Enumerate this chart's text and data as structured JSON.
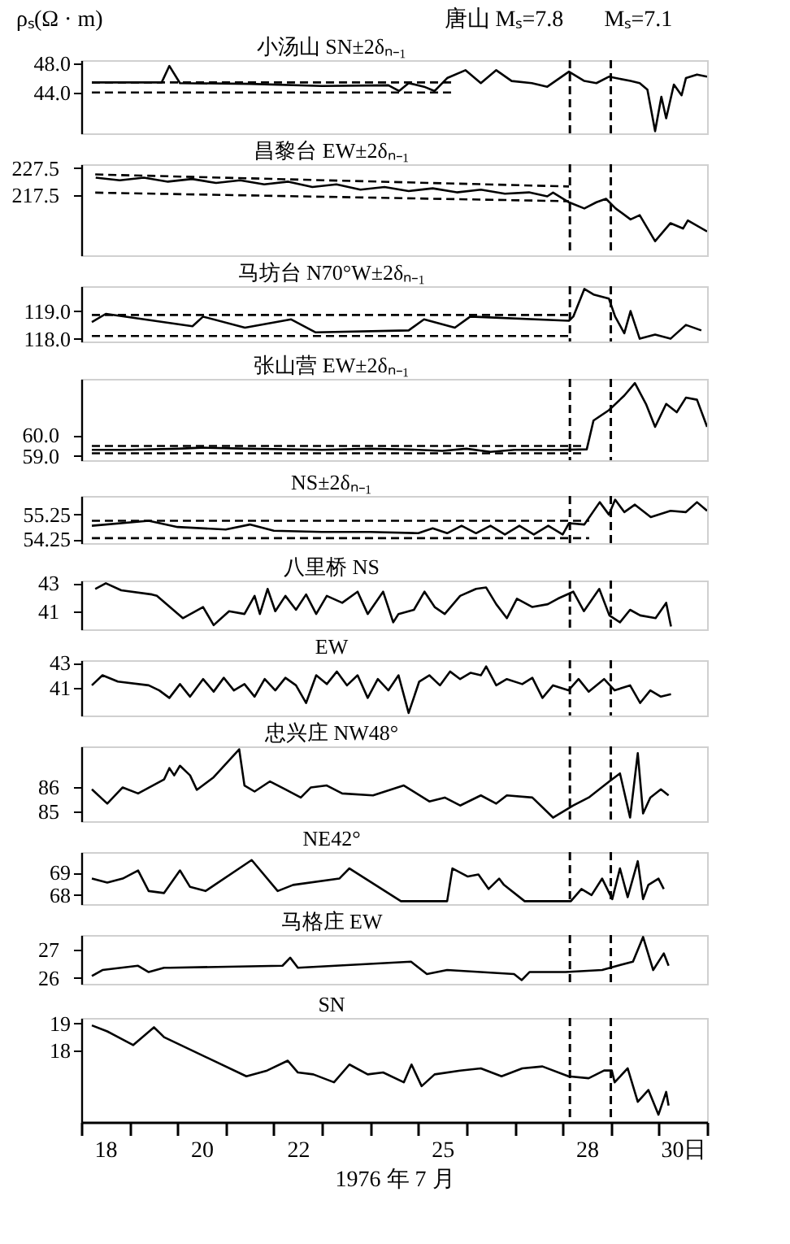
{
  "chart_data": [
    {
      "type": "line",
      "ylabel": "ρₛ(Ω · m)",
      "xlim": [
        18,
        31
      ],
      "ylim": [
        38.3,
        48.5
      ],
      "yticks": [
        {
          "value": 48,
          "label": "48.0"
        },
        {
          "value": 44,
          "label": "44.0"
        }
      ],
      "tick_labels": "y",
      "grid": false,
      "annotations": [
        "唐山 Mₛ=7.8",
        "Mₛ=7.1"
      ],
      "ref_lines": [
        {
          "axis": "x",
          "value": 28.15,
          "line_style": "dashed"
        },
        {
          "axis": "x",
          "value": 29.0,
          "line_style": "dashed"
        }
      ],
      "series": [
        {
          "name": "小汤山 SN±2δₙ₋₁",
          "color": "#000000",
          "x": [
            18.22,
            19.67,
            19.83,
            20.05,
            21.5,
            23,
            24.38,
            24.6,
            24.8,
            25.12,
            25.34,
            25.6,
            25.98,
            26.3,
            26.62,
            26.94,
            27.36,
            27.68,
            28.13,
            28.45,
            28.7,
            28.96,
            29.41,
            29.6,
            29.76,
            29.92,
            30.05,
            30.15,
            30.31,
            30.47,
            30.56,
            30.79,
            31.0
          ],
          "values": [
            45.4,
            45.4,
            47.7,
            45.3,
            45.2,
            44.9,
            45.0,
            44.2,
            45.3,
            44.8,
            44.2,
            46.0,
            47.1,
            45.3,
            47.1,
            45.6,
            45.3,
            44.8,
            46.9,
            45.6,
            45.3,
            46.2,
            45.6,
            45.3,
            44.4,
            38.6,
            43.4,
            40.4,
            45.1,
            43.6,
            46.0,
            46.5,
            46.2
          ]
        },
        {
          "type": "line",
          "line_style": "dashed",
          "color": "#000000",
          "x": [
            18.22,
            25.75
          ],
          "values": [
            45.4,
            45.4
          ]
        },
        {
          "type": "line",
          "line_style": "dashed",
          "color": "#000000",
          "x": [
            18.22,
            25.75
          ],
          "values": [
            44.0,
            44.0
          ]
        }
      ]
    },
    {
      "type": "line",
      "xlim": [
        18,
        31
      ],
      "ylim": [
        195,
        229
      ],
      "yticks": [
        {
          "value": 227.5,
          "label": "227.5"
        },
        {
          "value": 217.5,
          "label": "217.5"
        }
      ],
      "tick_labels": "y",
      "grid": false,
      "ref_lines": [
        {
          "axis": "x",
          "value": 28.15,
          "line_style": "dashed"
        },
        {
          "axis": "x",
          "value": 29.0,
          "line_style": "dashed"
        }
      ],
      "series": [
        {
          "name": "昌黎台 EW±2δₙ₋₁",
          "color": "#000000",
          "x": [
            18.3,
            18.8,
            19.3,
            19.8,
            20.3,
            20.8,
            21.3,
            21.8,
            22.3,
            22.8,
            23.3,
            23.8,
            24.3,
            24.8,
            25.3,
            25.8,
            26.3,
            26.8,
            27.3,
            27.68,
            27.8,
            28.13,
            28.45,
            28.7,
            28.9,
            29.1,
            29.41,
            29.6,
            29.92,
            30.24,
            30.5,
            30.6,
            31.0
          ],
          "values": [
            224,
            223,
            224,
            222.5,
            223.5,
            222,
            223,
            221.5,
            222.5,
            220.5,
            221.5,
            219.5,
            220.5,
            219,
            220,
            218.5,
            219.5,
            218,
            218.5,
            217,
            218.4,
            214.8,
            212.5,
            214.8,
            216.1,
            212.5,
            208.4,
            210,
            200.3,
            207,
            205,
            208,
            203.9
          ]
        },
        {
          "type": "line",
          "line_style": "dashed",
          "color": "#000000",
          "x": [
            18.29,
            28.13
          ],
          "values": [
            225.2,
            220.7
          ]
        },
        {
          "type": "line",
          "line_style": "dashed",
          "color": "#000000",
          "x": [
            18.29,
            28.13
          ],
          "values": [
            218.4,
            215.2
          ]
        }
      ]
    },
    {
      "type": "line",
      "xlim": [
        18,
        31
      ],
      "ylim": [
        117.9,
        119.9
      ],
      "yticks": [
        {
          "value": 119,
          "label": "119.0"
        },
        {
          "value": 118,
          "label": "118.0"
        }
      ],
      "tick_labels": "y",
      "grid": false,
      "ref_lines": [
        {
          "axis": "x",
          "value": 28.15,
          "line_style": "dashed"
        },
        {
          "axis": "x",
          "value": 29.0,
          "line_style": "dashed"
        }
      ],
      "series": [
        {
          "name": "马坊台 N70°W±2δₙ₋₁",
          "color": "#000000",
          "x": [
            18.22,
            18.51,
            20.31,
            20.53,
            21.4,
            22.36,
            22.87,
            24.8,
            25.12,
            25.76,
            26.08,
            28.13,
            28.22,
            28.45,
            28.64,
            28.96,
            29.09,
            29.28,
            29.41,
            29.6,
            29.92,
            30.24,
            30.56,
            30.88
          ],
          "values": [
            118.6,
            118.9,
            118.45,
            118.8,
            118.4,
            118.7,
            118.23,
            118.3,
            118.7,
            118.4,
            118.8,
            118.65,
            118.8,
            119.8,
            119.6,
            119.45,
            118.8,
            118.2,
            119.0,
            118.0,
            118.15,
            118.0,
            118.5,
            118.3
          ]
        },
        {
          "type": "line",
          "line_style": "dashed",
          "color": "#000000",
          "x": [
            18.22,
            28.13
          ],
          "values": [
            118.86,
            118.86
          ]
        },
        {
          "type": "line",
          "line_style": "dashed",
          "color": "#000000",
          "x": [
            18.22,
            28.13
          ],
          "values": [
            118.1,
            118.1
          ]
        }
      ]
    },
    {
      "type": "line",
      "xlim": [
        18,
        31
      ],
      "ylim": [
        58.8,
        62.7
      ],
      "yticks": [
        {
          "value": 60,
          "label": "60.0"
        },
        {
          "value": 59,
          "label": "59.0"
        }
      ],
      "tick_labels": "y",
      "grid": false,
      "ref_lines": [
        {
          "axis": "x",
          "value": 28.15,
          "line_style": "dashed"
        },
        {
          "axis": "x",
          "value": 29.0,
          "line_style": "dashed"
        }
      ],
      "series": [
        {
          "name": "张山营 EW±2δₙ₋₁",
          "color": "#000000",
          "x": [
            18.22,
            19,
            20,
            20.5,
            21.5,
            23,
            24,
            25,
            25.5,
            26,
            26.5,
            27,
            27.5,
            28,
            28.5,
            28.64,
            28.96,
            29.28,
            29.5,
            29.73,
            29.92,
            30.15,
            30.37,
            30.56,
            30.79,
            31.0
          ],
          "values": [
            59.3,
            59.3,
            59.35,
            59.4,
            59.35,
            59.3,
            59.35,
            59.3,
            59.25,
            59.35,
            59.2,
            59.3,
            59.3,
            59.3,
            59.32,
            60.7,
            61.2,
            61.9,
            62.5,
            61.5,
            60.4,
            61.5,
            61.1,
            61.8,
            61.7,
            60.4
          ]
        },
        {
          "type": "line",
          "line_style": "dashed",
          "color": "#000000",
          "x": [
            18.22,
            28.48
          ],
          "values": [
            59.48,
            59.48
          ]
        },
        {
          "type": "line",
          "line_style": "dashed",
          "color": "#000000",
          "x": [
            18.22,
            28.48
          ],
          "values": [
            59.13,
            59.13
          ]
        }
      ]
    },
    {
      "type": "line",
      "xlim": [
        18,
        31
      ],
      "ylim": [
        54.1,
        56.0
      ],
      "yticks": [
        {
          "value": 55.25,
          "label": "55.25"
        },
        {
          "value": 54.25,
          "label": "54.25"
        }
      ],
      "tick_labels": "y",
      "grid": false,
      "ref_lines": [
        {
          "axis": "x",
          "value": 28.15,
          "line_style": "dashed"
        },
        {
          "axis": "x",
          "value": 29.0,
          "line_style": "dashed"
        }
      ],
      "series": [
        {
          "name": "NS±2δₙ₋₁",
          "color": "#000000",
          "x": [
            18.22,
            19.4,
            20,
            21,
            21.5,
            22,
            23,
            24,
            25,
            25.3,
            25.6,
            25.9,
            26.2,
            26.5,
            26.8,
            27.1,
            27.4,
            27.7,
            28.0,
            28.13,
            28.45,
            28.77,
            28.96,
            29.09,
            29.28,
            29.5,
            29.83,
            30.24,
            30.56,
            30.79,
            31.0
          ],
          "values": [
            54.8,
            55.0,
            54.75,
            54.65,
            54.85,
            54.6,
            54.55,
            54.55,
            54.5,
            54.7,
            54.5,
            54.8,
            54.5,
            54.8,
            54.45,
            54.8,
            54.45,
            54.8,
            54.45,
            54.9,
            54.85,
            55.75,
            55.25,
            55.85,
            55.35,
            55.65,
            55.15,
            55.4,
            55.35,
            55.75,
            55.4
          ]
        },
        {
          "type": "line",
          "line_style": "dashed",
          "color": "#000000",
          "x": [
            18.22,
            28.55
          ],
          "values": [
            55.0,
            55.0
          ]
        },
        {
          "type": "line",
          "line_style": "dashed",
          "color": "#000000",
          "x": [
            18.22,
            28.55
          ],
          "values": [
            54.3,
            54.3
          ]
        }
      ]
    },
    {
      "type": "line",
      "xlim": [
        18,
        31
      ],
      "ylim": [
        39.7,
        43.2
      ],
      "yticks": [
        43,
        41
      ],
      "tick_labels": "y",
      "grid": false,
      "ref_lines": [
        {
          "axis": "x",
          "value": 28.15,
          "line_style": "dashed"
        },
        {
          "axis": "x",
          "value": 29.0,
          "line_style": "dashed"
        }
      ],
      "series": [
        {
          "name": "八里桥 NS",
          "color": "#000000",
          "x": [
            18.29,
            18.51,
            18.83,
            19.47,
            19.57,
            20.11,
            20.53,
            20.75,
            21.07,
            21.39,
            21.6,
            21.71,
            21.87,
            22.03,
            22.24,
            22.46,
            22.67,
            22.88,
            23.1,
            23.42,
            23.74,
            23.95,
            24.27,
            24.48,
            24.59,
            24.91,
            25.13,
            25.34,
            25.55,
            25.87,
            26.2,
            26.41,
            26.62,
            26.84,
            27.05,
            27.37,
            27.69,
            27.9,
            28.22,
            28.44,
            28.76,
            28.97,
            29.19,
            29.4,
            29.61,
            29.93,
            30.15,
            30.25
          ],
          "values": [
            42.6,
            43.0,
            42.5,
            42.2,
            42.1,
            40.5,
            41.3,
            40.0,
            41.0,
            40.8,
            42.1,
            40.8,
            42.6,
            41.0,
            42.1,
            41.1,
            42.2,
            40.8,
            42.1,
            41.6,
            42.4,
            40.8,
            42.4,
            40.2,
            40.8,
            41.1,
            42.4,
            41.3,
            40.8,
            42.1,
            42.6,
            42.7,
            41.5,
            40.5,
            41.9,
            41.3,
            41.5,
            41.9,
            42.4,
            41.0,
            42.6,
            40.7,
            40.2,
            41.1,
            40.7,
            40.5,
            41.6,
            39.9
          ]
        }
      ]
    },
    {
      "type": "line",
      "xlim": [
        18,
        31
      ],
      "ylim": [
        38.8,
        43.2
      ],
      "yticks": [
        43,
        41
      ],
      "tick_labels": "y",
      "grid": false,
      "ref_lines": [
        {
          "axis": "x",
          "value": 28.15,
          "line_style": "dashed"
        },
        {
          "axis": "x",
          "value": 29.0,
          "line_style": "dashed"
        }
      ],
      "series": [
        {
          "name": "EW",
          "color": "#000000",
          "x": [
            18.22,
            18.44,
            18.76,
            19.4,
            19.62,
            19.83,
            20.05,
            20.26,
            20.53,
            20.75,
            20.96,
            21.17,
            21.39,
            21.6,
            21.81,
            22.03,
            22.24,
            22.46,
            22.67,
            22.88,
            23.1,
            23.31,
            23.52,
            23.74,
            23.95,
            24.16,
            24.38,
            24.59,
            24.8,
            25.02,
            25.23,
            25.45,
            25.66,
            25.87,
            26.09,
            26.3,
            26.41,
            26.62,
            26.84,
            27.16,
            27.37,
            27.58,
            27.8,
            28.12,
            28.33,
            28.54,
            28.86,
            29.08,
            29.4,
            29.61,
            29.82,
            30.04,
            30.25
          ],
          "values": [
            41.2,
            42.0,
            41.5,
            41.2,
            40.8,
            40.2,
            41.3,
            40.3,
            41.7,
            40.7,
            41.8,
            40.8,
            41.3,
            40.3,
            41.7,
            40.8,
            41.8,
            41.2,
            39.8,
            42.0,
            41.3,
            42.3,
            41.2,
            42.0,
            40.2,
            41.7,
            40.8,
            42.0,
            39.0,
            41.5,
            42.0,
            41.2,
            42.3,
            41.7,
            42.2,
            42.0,
            42.7,
            41.2,
            41.7,
            41.3,
            41.8,
            40.2,
            41.2,
            40.8,
            41.7,
            40.7,
            41.7,
            40.8,
            41.2,
            39.8,
            40.8,
            40.3,
            40.5
          ]
        }
      ]
    },
    {
      "type": "line",
      "xlim": [
        18,
        31
      ],
      "ylim": [
        84.6,
        87.7
      ],
      "yticks": [
        86,
        85
      ],
      "tick_labels": "y",
      "grid": false,
      "ref_lines": [
        {
          "axis": "x",
          "value": 28.15,
          "line_style": "dashed"
        },
        {
          "axis": "x",
          "value": 29.0,
          "line_style": "dashed"
        }
      ],
      "series": [
        {
          "name": "忠兴庄 NW48°",
          "color": "#000000",
          "x": [
            18.22,
            18.54,
            18.86,
            19.18,
            19.72,
            19.83,
            19.93,
            20.05,
            20.26,
            20.4,
            20.75,
            21.28,
            21.39,
            21.6,
            21.92,
            22.24,
            22.56,
            22.77,
            23.1,
            23.42,
            24.06,
            24.7,
            25.23,
            25.55,
            25.87,
            26.3,
            26.62,
            26.84,
            27.37,
            27.8,
            28.22,
            28.54,
            28.76,
            28.97,
            29.19,
            29.4,
            29.56,
            29.67,
            29.82,
            30.04,
            30.2
          ],
          "values": [
            85.92,
            85.33,
            86.0,
            85.75,
            86.33,
            86.8,
            86.5,
            86.9,
            86.5,
            85.9,
            86.42,
            87.58,
            86.08,
            85.83,
            86.25,
            85.92,
            85.58,
            86.0,
            86.08,
            85.75,
            85.67,
            86.08,
            85.42,
            85.58,
            85.25,
            85.67,
            85.33,
            85.67,
            85.58,
            84.75,
            85.25,
            85.58,
            85.92,
            86.25,
            86.58,
            84.75,
            87.42,
            84.92,
            85.58,
            85.92,
            85.67
          ]
        }
      ]
    },
    {
      "type": "line",
      "xlim": [
        18,
        31
      ],
      "ylim": [
        67.6,
        69.9
      ],
      "yticks": [
        69,
        68
      ],
      "tick_labels": "y",
      "grid": false,
      "ref_lines": [
        {
          "axis": "x",
          "value": 28.15,
          "line_style": "dashed"
        },
        {
          "axis": "x",
          "value": 29.0,
          "line_style": "dashed"
        }
      ],
      "series": [
        {
          "name": "NE42°",
          "color": "#000000",
          "x": [
            18.22,
            18.54,
            18.86,
            19.18,
            19.4,
            19.72,
            20.05,
            20.26,
            20.58,
            21.54,
            22.08,
            22.4,
            23.36,
            23.57,
            24.64,
            25.6,
            25.71,
            26.03,
            26.25,
            26.46,
            26.68,
            26.78,
            27.21,
            28.17,
            28.39,
            28.6,
            28.82,
            29.03,
            29.19,
            29.35,
            29.56,
            29.67,
            29.78,
            29.99,
            30.1
          ],
          "values": [
            68.73,
            68.55,
            68.73,
            69.09,
            68.18,
            68.09,
            69.09,
            68.36,
            68.18,
            69.55,
            68.18,
            68.45,
            68.73,
            69.18,
            67.73,
            67.73,
            69.18,
            68.82,
            68.91,
            68.27,
            68.73,
            68.45,
            67.73,
            67.73,
            68.27,
            68.0,
            68.73,
            67.82,
            69.18,
            67.91,
            69.5,
            67.82,
            68.45,
            68.73,
            68.27
          ]
        }
      ]
    },
    {
      "type": "line",
      "xlim": [
        18,
        31
      ],
      "ylim": [
        25.8,
        27.5
      ],
      "yticks": [
        27,
        26
      ],
      "tick_labels": "y",
      "grid": false,
      "ref_lines": [
        {
          "axis": "x",
          "value": 28.15,
          "line_style": "dashed"
        },
        {
          "axis": "x",
          "value": 29.0,
          "line_style": "dashed"
        }
      ],
      "series": [
        {
          "name": "马格庄 EW",
          "color": "#000000",
          "x": [
            18.22,
            18.44,
            19.18,
            19.4,
            19.72,
            19.83,
            22.18,
            22.34,
            22.5,
            24.85,
            25.18,
            25.6,
            26.99,
            27.15,
            27.31,
            28.06,
            28.82,
            29.14,
            29.46,
            29.67,
            29.88,
            30.1,
            30.2
          ],
          "values": [
            26.07,
            26.28,
            26.43,
            26.21,
            26.36,
            26.36,
            26.43,
            26.71,
            26.36,
            26.57,
            26.14,
            26.28,
            26.14,
            25.93,
            26.21,
            26.21,
            26.28,
            26.43,
            26.57,
            27.43,
            26.28,
            26.86,
            26.43
          ]
        }
      ]
    },
    {
      "type": "line",
      "xlabel": "1976 年 7 月",
      "xlim": [
        18,
        31
      ],
      "ylim": [
        15.4,
        19.2
      ],
      "yticks": [
        19,
        18
      ],
      "grid": false,
      "xticks": [
        {
          "value": 18,
          "label": null
        },
        {
          "value": 18.5,
          "label": "18"
        },
        {
          "value": 19,
          "label": null
        },
        {
          "value": 20,
          "label": null
        },
        {
          "value": 20.5,
          "label": "20"
        },
        {
          "value": 21,
          "label": null
        },
        {
          "value": 22,
          "label": null
        },
        {
          "value": 22.5,
          "label": "22"
        },
        {
          "value": 23,
          "label": null
        },
        {
          "value": 24,
          "label": null
        },
        {
          "value": 25,
          "label": null
        },
        {
          "value": 25.5,
          "label": "25"
        },
        {
          "value": 26,
          "label": null
        },
        {
          "value": 27,
          "label": null
        },
        {
          "value": 28,
          "label": null
        },
        {
          "value": 28.5,
          "label": "28"
        },
        {
          "value": 29,
          "label": null
        },
        {
          "value": 30,
          "label": null
        },
        {
          "value": 30.5,
          "label": "30日"
        },
        {
          "value": 31,
          "label": null
        }
      ],
      "ref_lines": [
        {
          "axis": "x",
          "value": 28.15,
          "line_style": "dashed"
        },
        {
          "axis": "x",
          "value": 29.0,
          "line_style": "dashed"
        }
      ],
      "series": [
        {
          "name": "SN",
          "color": "#000000",
          "x": [
            18.22,
            18.54,
            19.08,
            19.51,
            19.72,
            21.43,
            21.86,
            22.29,
            22.5,
            22.82,
            23.25,
            23.57,
            23.95,
            24.27,
            24.7,
            24.86,
            25.07,
            25.34,
            25.87,
            26.3,
            26.73,
            27.16,
            27.58,
            28.12,
            28.54,
            28.86,
            29.02,
            29.08,
            29.35,
            29.56,
            29.78,
            29.99,
            30.15,
            30.2
          ],
          "values": [
            18.93,
            18.71,
            18.21,
            18.86,
            18.5,
            17.07,
            17.28,
            17.64,
            17.21,
            17.14,
            16.85,
            17.5,
            17.14,
            17.21,
            16.85,
            17.5,
            16.71,
            17.14,
            17.28,
            17.36,
            17.07,
            17.36,
            17.43,
            17.07,
            17.0,
            17.28,
            17.28,
            16.85,
            17.36,
            16.14,
            16.57,
            15.67,
            16.5,
            16.0
          ]
        }
      ]
    }
  ]
}
